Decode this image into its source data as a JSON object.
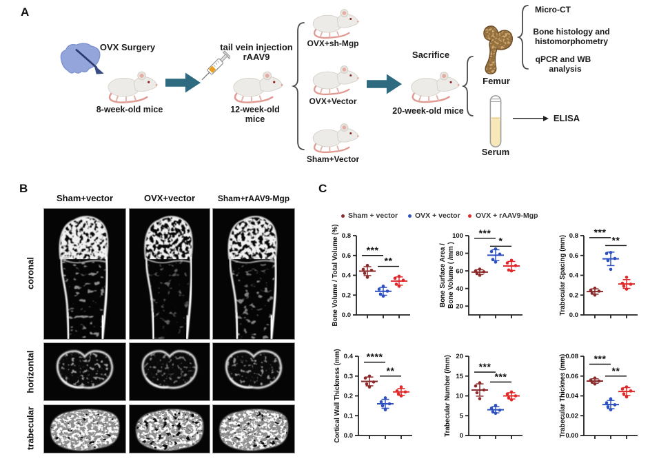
{
  "panel_a": {
    "label": "A",
    "ovx_surgery": "OVX Surgery",
    "mice_8w": "8-week-old mice",
    "injection_l1": "tail vein injection",
    "injection_l2": "rAAV9",
    "mice_12w_l1": "12-week-old",
    "mice_12w_l2": "mice",
    "group_1": "OVX+sh-Mgp",
    "group_2": "OVX+Vector",
    "group_3": "Sham+Vector",
    "sacrifice": "Sacrifice",
    "mice_20w": "20-week-old mice",
    "femur": "Femur",
    "serum": "Serum",
    "analysis_microct": "Micro-CT",
    "analysis_histology_l1": "Bone histology and",
    "analysis_histology_l2": "histomorphometry",
    "analysis_qpcr_l1": "qPCR and WB",
    "analysis_qpcr_l2": "analysis",
    "analysis_elisa": "ELISA"
  },
  "panel_b": {
    "label": "B",
    "columns": [
      "Sham+vector",
      "OVX+vector",
      "Sham+rAAV9-Mgp"
    ],
    "rows": [
      "coronal",
      "horizontal",
      "trabecular"
    ]
  },
  "panel_c": {
    "label": "C",
    "legend": [
      {
        "label": "Sham + vector",
        "color": "#8b2a2a"
      },
      {
        "label": "OVX + vector",
        "color": "#2d50c0"
      },
      {
        "label": "OVX + rAAV9-Mgp",
        "color": "#e02828"
      }
    ]
  },
  "chart_data": [
    {
      "type": "scatter",
      "ylabel": [
        "Bone Volume / Total Volume (%)"
      ],
      "ylim": [
        0,
        0.8
      ],
      "yticks": [
        {
          "v": 0,
          "t": "0.0"
        },
        {
          "v": 0.2,
          "t": "0.2"
        },
        {
          "v": 0.4,
          "t": "0.4"
        },
        {
          "v": 0.6,
          "t": "0.6"
        },
        {
          "v": 0.8,
          "t": "0.8"
        }
      ],
      "series": [
        {
          "name": "Sham + vector",
          "color": "#8b2a2a",
          "values": [
            0.5,
            0.46,
            0.45,
            0.42,
            0.38
          ]
        },
        {
          "name": "OVX + vector",
          "color": "#2d50c0",
          "values": [
            0.29,
            0.26,
            0.24,
            0.21,
            0.19
          ]
        },
        {
          "name": "OVX + rAAV9-Mgp",
          "color": "#e02828",
          "values": [
            0.39,
            0.37,
            0.35,
            0.31,
            0.29
          ]
        }
      ],
      "sig": [
        {
          "a": 0,
          "b": 1,
          "y": 0.6,
          "label": "***"
        },
        {
          "a": 1,
          "b": 2,
          "y": 0.49,
          "label": "**"
        }
      ]
    },
    {
      "type": "scatter",
      "ylabel": [
        "Bone Surface Area /",
        "Bone Volume ( /mm )"
      ],
      "ylim": [
        10,
        100
      ],
      "yticks": [
        {
          "v": 20,
          "t": "20"
        },
        {
          "v": 40,
          "t": "40"
        },
        {
          "v": 60,
          "t": "60"
        },
        {
          "v": 80,
          "t": "80"
        },
        {
          "v": 100,
          "t": "100"
        }
      ],
      "series": [
        {
          "name": "Sham + vector",
          "color": "#8b2a2a",
          "values": [
            62,
            60,
            59,
            57,
            55
          ]
        },
        {
          "name": "OVX + vector",
          "color": "#2d50c0",
          "values": [
            85,
            82,
            79,
            73,
            70
          ]
        },
        {
          "name": "OVX + rAAV9-Mgp",
          "color": "#e02828",
          "values": [
            72,
            69,
            66,
            61,
            60
          ]
        }
      ],
      "sig": [
        {
          "a": 0,
          "b": 1,
          "y": 97,
          "label": "***"
        },
        {
          "a": 1,
          "b": 2,
          "y": 88,
          "label": "*"
        }
      ]
    },
    {
      "type": "scatter",
      "ylabel": [
        "Trabecular Spacing (mm)"
      ],
      "ylim": [
        0,
        0.8
      ],
      "yticks": [
        {
          "v": 0,
          "t": "0.0"
        },
        {
          "v": 0.2,
          "t": "0.2"
        },
        {
          "v": 0.4,
          "t": "0.4"
        },
        {
          "v": 0.6,
          "t": "0.6"
        },
        {
          "v": 0.8,
          "t": "0.8"
        }
      ],
      "series": [
        {
          "name": "Sham + vector",
          "color": "#8b2a2a",
          "values": [
            0.27,
            0.25,
            0.24,
            0.22,
            0.2
          ]
        },
        {
          "name": "OVX + vector",
          "color": "#2d50c0",
          "values": [
            0.63,
            0.62,
            0.57,
            0.55,
            0.46
          ]
        },
        {
          "name": "OVX + rAAV9-Mgp",
          "color": "#e02828",
          "values": [
            0.38,
            0.32,
            0.31,
            0.29,
            0.26
          ]
        }
      ],
      "sig": [
        {
          "a": 0,
          "b": 1,
          "y": 0.78,
          "label": "***"
        },
        {
          "a": 1,
          "b": 2,
          "y": 0.7,
          "label": "**"
        }
      ]
    },
    {
      "type": "scatter",
      "ylabel": [
        "Cortical Wall Thickness (mm)"
      ],
      "ylim": [
        0,
        0.4
      ],
      "yticks": [
        {
          "v": 0,
          "t": "0.0"
        },
        {
          "v": 0.1,
          "t": "0.1"
        },
        {
          "v": 0.2,
          "t": "0.2"
        },
        {
          "v": 0.3,
          "t": "0.3"
        },
        {
          "v": 0.4,
          "t": "0.4"
        }
      ],
      "series": [
        {
          "name": "Sham + vector",
          "color": "#8b2a2a",
          "values": [
            0.3,
            0.29,
            0.27,
            0.26,
            0.245
          ]
        },
        {
          "name": "OVX + vector",
          "color": "#2d50c0",
          "values": [
            0.19,
            0.17,
            0.16,
            0.15,
            0.13
          ]
        },
        {
          "name": "OVX + rAAV9-Mgp",
          "color": "#e02828",
          "values": [
            0.245,
            0.225,
            0.22,
            0.21,
            0.2
          ]
        }
      ],
      "sig": [
        {
          "a": 0,
          "b": 1,
          "y": 0.37,
          "label": "****"
        },
        {
          "a": 1,
          "b": 2,
          "y": 0.3,
          "label": "**"
        }
      ]
    },
    {
      "type": "scatter",
      "ylabel": [
        "Trabecular Number (/mm)"
      ],
      "ylim": [
        0,
        20
      ],
      "yticks": [
        {
          "v": 0,
          "t": "0"
        },
        {
          "v": 5,
          "t": "5"
        },
        {
          "v": 10,
          "t": "10"
        },
        {
          "v": 15,
          "t": "15"
        },
        {
          "v": 20,
          "t": "20"
        }
      ],
      "series": [
        {
          "name": "Sham + vector",
          "color": "#8b2a2a",
          "values": [
            13.3,
            12.5,
            11.5,
            10.8,
            9.3
          ]
        },
        {
          "name": "OVX + vector",
          "color": "#2d50c0",
          "values": [
            7.6,
            6.9,
            6.4,
            6.0,
            5.6
          ]
        },
        {
          "name": "OVX + rAAV9-Mgp",
          "color": "#e02828",
          "values": [
            11.0,
            10.5,
            10.0,
            9.5,
            9.0
          ]
        }
      ],
      "sig": [
        {
          "a": 0,
          "b": 1,
          "y": 16,
          "label": "***"
        },
        {
          "a": 1,
          "b": 2,
          "y": 13.5,
          "label": "***"
        }
      ]
    },
    {
      "type": "scatter",
      "ylabel": [
        "Trabecular Thicknes (mm)"
      ],
      "ylim": [
        0,
        0.08
      ],
      "yticks": [
        {
          "v": 0,
          "t": "0.00"
        },
        {
          "v": 0.02,
          "t": "0.02"
        },
        {
          "v": 0.04,
          "t": "0.04"
        },
        {
          "v": 0.06,
          "t": "0.06"
        },
        {
          "v": 0.08,
          "t": "0.08"
        }
      ],
      "series": [
        {
          "name": "Sham + vector",
          "color": "#8b2a2a",
          "values": [
            0.058,
            0.056,
            0.055,
            0.054,
            0.052
          ]
        },
        {
          "name": "OVX + vector",
          "color": "#2d50c0",
          "values": [
            0.037,
            0.033,
            0.031,
            0.029,
            0.026
          ]
        },
        {
          "name": "OVX + rAAV9-Mgp",
          "color": "#e02828",
          "values": [
            0.049,
            0.047,
            0.045,
            0.042,
            0.039
          ]
        }
      ],
      "sig": [
        {
          "a": 0,
          "b": 1,
          "y": 0.072,
          "label": "***"
        },
        {
          "a": 1,
          "b": 2,
          "y": 0.06,
          "label": "**"
        }
      ]
    }
  ]
}
